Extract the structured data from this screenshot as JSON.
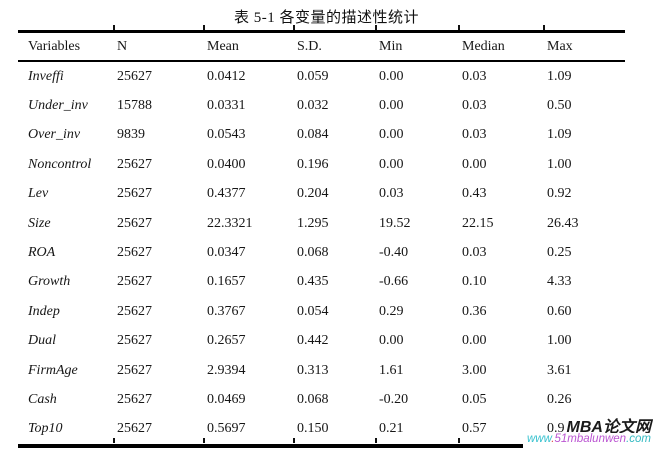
{
  "page": {
    "caption": "表 5-1  各变量的描述性统计"
  },
  "table": {
    "columns": [
      "Variables",
      "N",
      "Mean",
      "S.D.",
      "Min",
      "Median",
      "Max"
    ],
    "rows": [
      [
        "Inveffi",
        "25627",
        "0.0412",
        "0.059",
        "0.00",
        "0.03",
        "1.09"
      ],
      [
        "Under_inv",
        "15788",
        "0.0331",
        "0.032",
        "0.00",
        "0.03",
        "0.50"
      ],
      [
        "Over_inv",
        "9839",
        "0.0543",
        "0.084",
        "0.00",
        "0.03",
        "1.09"
      ],
      [
        "Noncontrol",
        "25627",
        "0.0400",
        "0.196",
        "0.00",
        "0.00",
        "1.00"
      ],
      [
        "Lev",
        "25627",
        "0.4377",
        "0.204",
        "0.03",
        "0.43",
        "0.92"
      ],
      [
        "Size",
        "25627",
        "22.3321",
        "1.295",
        "19.52",
        "22.15",
        "26.43"
      ],
      [
        "ROA",
        "25627",
        "0.0347",
        "0.068",
        "-0.40",
        "0.03",
        "0.25"
      ],
      [
        "Growth",
        "25627",
        "0.1657",
        "0.435",
        "-0.66",
        "0.10",
        "4.33"
      ],
      [
        "Indep",
        "25627",
        "0.3767",
        "0.054",
        "0.29",
        "0.36",
        "0.60"
      ],
      [
        "Dual",
        "25627",
        "0.2657",
        "0.442",
        "0.00",
        "0.00",
        "1.00"
      ],
      [
        "FirmAge",
        "25627",
        "2.9394",
        "0.313",
        "1.61",
        "3.00",
        "3.61"
      ],
      [
        "Cash",
        "25627",
        "0.0469",
        "0.068",
        "-0.20",
        "0.05",
        "0.26"
      ],
      [
        "Top10",
        "25627",
        "0.5697",
        "0.150",
        "0.21",
        "0.57",
        "0.9"
      ]
    ]
  },
  "watermark": {
    "brand": "MBA论文网",
    "url_prefix": "www",
    "url_sep": ".",
    "url_domain": "51mbalunwen",
    "url_tld": ".com",
    "colors": {
      "brand": "#1b1b1b",
      "url_prefix": "#38c2cf",
      "url_sep": "#e04848",
      "url_domain": "#bb55d2",
      "url_tld": "#35bac2"
    }
  }
}
